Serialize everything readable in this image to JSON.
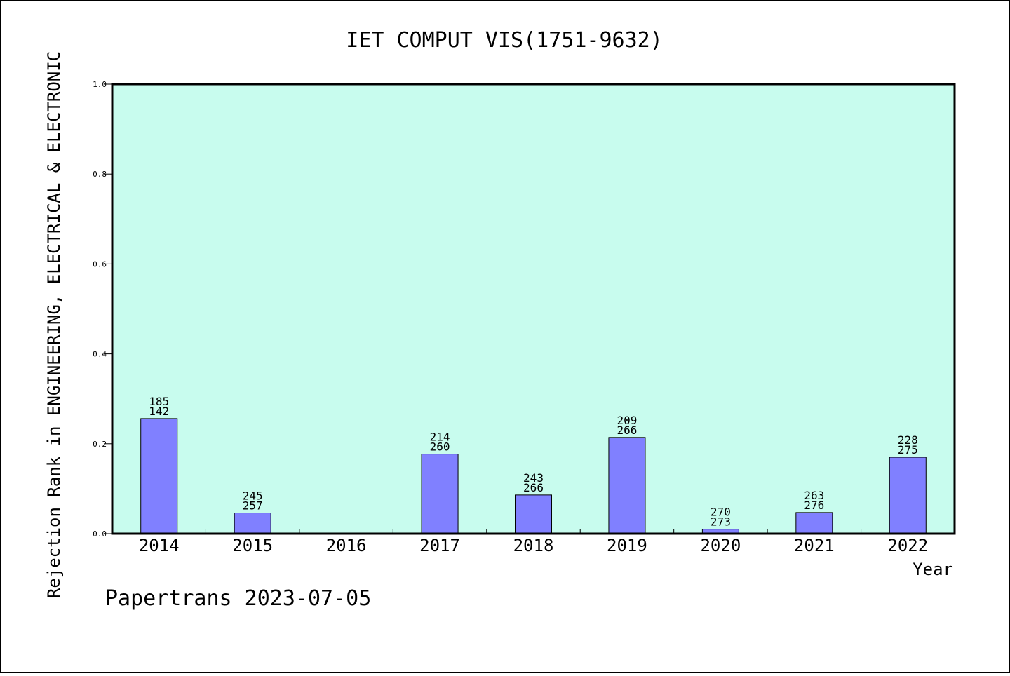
{
  "chart_data": {
    "type": "bar",
    "title": "IET COMPUT VIS(1751-9632)",
    "xlabel": "Year",
    "ylabel": "Rejection Rank in ENGINEERING, ELECTRICAL & ELECTRONIC",
    "categories": [
      "2014",
      "2015",
      "2016",
      "2017",
      "2018",
      "2019",
      "2020",
      "2021",
      "2022"
    ],
    "values": [
      0.256,
      0.046,
      null,
      0.177,
      0.086,
      0.214,
      0.01,
      0.047,
      0.17
    ],
    "labels_top": [
      "185",
      "245",
      "",
      "214",
      "243",
      "209",
      "270",
      "263",
      "228"
    ],
    "labels_bottom": [
      "142",
      "257",
      "",
      "260",
      "266",
      "266",
      "273",
      "276",
      "275"
    ],
    "ylim": [
      0,
      1.0
    ],
    "yticks": [
      "0.0",
      "0.2",
      "0.4",
      "0.6",
      "0.8",
      "1.0"
    ],
    "grid": false,
    "colors": {
      "plot_background": "#c8fcee",
      "bar_fill": "#8080ff",
      "bar_stroke": "#000000"
    }
  },
  "footer": {
    "text": "Papertrans 2023-07-05"
  }
}
